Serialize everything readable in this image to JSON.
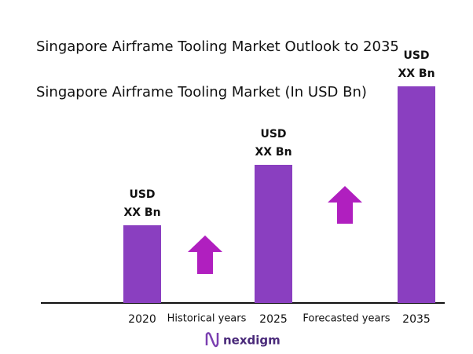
{
  "chart_data": {
    "type": "bar",
    "title": "Singapore Airframe Tooling Market Outlook to 2035",
    "subtitle": "Singapore Airframe Tooling Market (In USD Bn)",
    "categories": [
      "2020",
      "2025",
      "2035"
    ],
    "values": [
      99,
      176,
      276
    ],
    "color": "#8a3fc0",
    "ylim": [
      0,
      290
    ],
    "bar_labels": [
      [
        "USD",
        "XX Bn"
      ],
      [
        "USD",
        "XX Bn"
      ],
      [
        "USD",
        "XX Bn"
      ]
    ],
    "period_labels": [
      "Historical years",
      "Forecasted years"
    ]
  },
  "logo": "nexdigm"
}
